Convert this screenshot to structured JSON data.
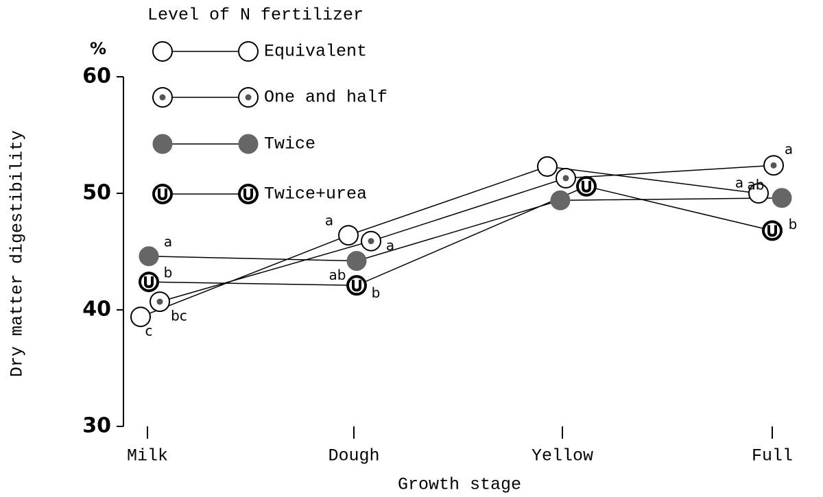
{
  "chart_data": {
    "type": "line",
    "legend_title": "Level of N fertilizer",
    "unit_label": "%",
    "y_label": "Dry matter digestibility",
    "x_label": "Growth stage",
    "categories": [
      "Milk",
      "Dough",
      "Yellow",
      "Full"
    ],
    "ylim": [
      30,
      60
    ],
    "yticks": [
      30,
      40,
      50,
      60
    ],
    "series": [
      {
        "name": "Equivalent",
        "color": "#000000",
        "values": [
          39.4,
          46.4,
          52.3,
          50.0
        ],
        "letters": [
          "c",
          "a",
          null,
          "a"
        ]
      },
      {
        "name": "One and half",
        "color": "#000000",
        "values": [
          40.7,
          45.9,
          51.3,
          52.4
        ],
        "letters": [
          "bc",
          "a",
          null,
          "a"
        ]
      },
      {
        "name": "Twice",
        "color": "#666666",
        "values": [
          44.6,
          44.2,
          49.4,
          49.6
        ],
        "letters": [
          "a",
          "ab",
          null,
          "ab"
        ]
      },
      {
        "name": "Twice+urea",
        "color": "#000000",
        "values": [
          42.4,
          42.1,
          50.6,
          46.8
        ],
        "letters": [
          "b",
          "b",
          null,
          "b"
        ]
      }
    ]
  }
}
